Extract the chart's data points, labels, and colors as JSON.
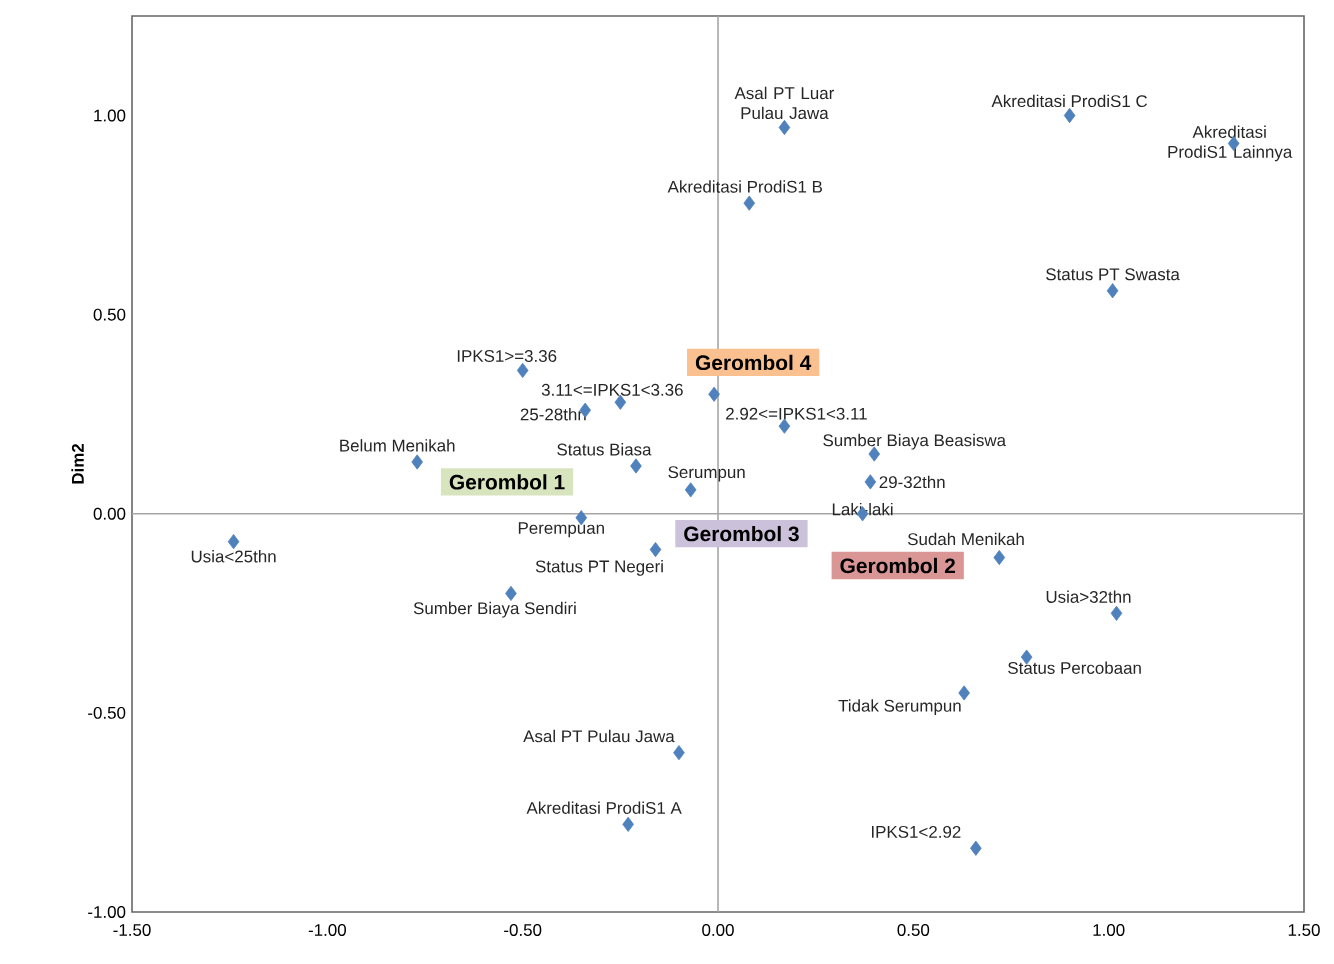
{
  "chart_data": {
    "type": "scatter",
    "ylabel": "Dim2",
    "marker": "diamond",
    "xlim": [
      -1.5,
      1.5
    ],
    "ylim": [
      -1.0,
      1.25
    ],
    "xticks": [
      {
        "value": -1.5,
        "label": "-1.50"
      },
      {
        "value": -1.0,
        "label": "-1.00"
      },
      {
        "value": -0.5,
        "label": "-0.50"
      },
      {
        "value": 0,
        "label": "0.00"
      },
      {
        "value": 0.5,
        "label": "0.50"
      },
      {
        "value": 1.0,
        "label": "1.00"
      },
      {
        "value": 1.5,
        "label": "1.50"
      }
    ],
    "yticks": [
      {
        "value": -1.0,
        "label": "-1.00"
      },
      {
        "value": -0.5,
        "label": "-0.50"
      },
      {
        "value": 0,
        "label": "0.00"
      },
      {
        "value": 0.5,
        "label": "0.50"
      },
      {
        "value": 1.0,
        "label": "1.00"
      }
    ],
    "series": [
      {
        "color": "#4f81bd",
        "x": [
          -1.24,
          -0.53,
          -0.77,
          -0.5,
          -0.25,
          -0.34,
          -0.21,
          -0.07,
          -0.35,
          -0.16,
          -0.1,
          -0.23,
          -0.01,
          0.17,
          0.4,
          0.39,
          0.37,
          0.72,
          1.02,
          0.79,
          0.63,
          0.66,
          0.17,
          0.9,
          1.32,
          1.01,
          0.08
        ],
        "values": [
          -0.07,
          -0.2,
          0.13,
          0.36,
          0.28,
          0.26,
          0.12,
          0.06,
          -0.01,
          -0.09,
          -0.6,
          -0.78,
          0.3,
          0.22,
          0.15,
          0.08,
          0.0,
          -0.11,
          -0.25,
          -0.36,
          -0.45,
          -0.84,
          0.97,
          1.0,
          0.93,
          0.56,
          0.78
        ]
      }
    ],
    "annotations": [
      {
        "text": "Usia<25thn",
        "x": -1.24,
        "y": -0.07
      },
      {
        "text": "Sumber Biaya Sendiri",
        "x": -0.53,
        "y": -0.2
      },
      {
        "text": "Belum Menikah",
        "x": -0.77,
        "y": 0.13
      },
      {
        "text": "IPKS1>=3.36",
        "x": -0.5,
        "y": 0.36
      },
      {
        "text": "3.11<=IPKS1<3.36",
        "x": -0.25,
        "y": 0.28
      },
      {
        "text": "25-28thn",
        "x": -0.34,
        "y": 0.26
      },
      {
        "text": "Status Biasa",
        "x": -0.21,
        "y": 0.12
      },
      {
        "text": "Serumpun",
        "x": -0.07,
        "y": 0.06
      },
      {
        "text": "Perempuan",
        "x": -0.35,
        "y": -0.01
      },
      {
        "text": "Status PT Negeri",
        "x": -0.16,
        "y": -0.09
      },
      {
        "text": "Asal PT Pulau Jawa",
        "x": -0.1,
        "y": -0.6
      },
      {
        "text": "Akreditasi ProdiS1 A",
        "x": -0.23,
        "y": -0.78
      },
      {
        "text": "2.92<=IPKS1<3.11",
        "x": 0.17,
        "y": 0.22
      },
      {
        "text": "Sumber Biaya Beasiswa",
        "x": 0.4,
        "y": 0.15
      },
      {
        "text": "29-32thn",
        "x": 0.39,
        "y": 0.08
      },
      {
        "text": "Laki-laki",
        "x": 0.37,
        "y": 0.0
      },
      {
        "text": "Sudah Menikah",
        "x": 0.72,
        "y": -0.11
      },
      {
        "text": "Usia>32thn",
        "x": 1.02,
        "y": -0.25
      },
      {
        "text": "Status Percobaan",
        "x": 0.79,
        "y": -0.36
      },
      {
        "text": "Tidak Serumpun",
        "x": 0.63,
        "y": -0.45
      },
      {
        "text": "IPKS1<2.92",
        "x": 0.66,
        "y": -0.84
      },
      {
        "text": "Asal PT Luar Pulau Jawa",
        "x": 0.17,
        "y": 0.97
      },
      {
        "text": "Akreditasi ProdiS1 C",
        "x": 0.9,
        "y": 1.0
      },
      {
        "text": "Akreditasi ProdiS1 Lainnya",
        "x": 1.32,
        "y": 0.93
      },
      {
        "text": "Status PT Swasta",
        "x": 1.01,
        "y": 0.56
      },
      {
        "text": "Akreditasi ProdiS1 B",
        "x": 0.08,
        "y": 0.78
      },
      "Gerombol 1",
      "Gerombol 2",
      "Gerombol 3",
      "Gerombol 4"
    ]
  }
}
